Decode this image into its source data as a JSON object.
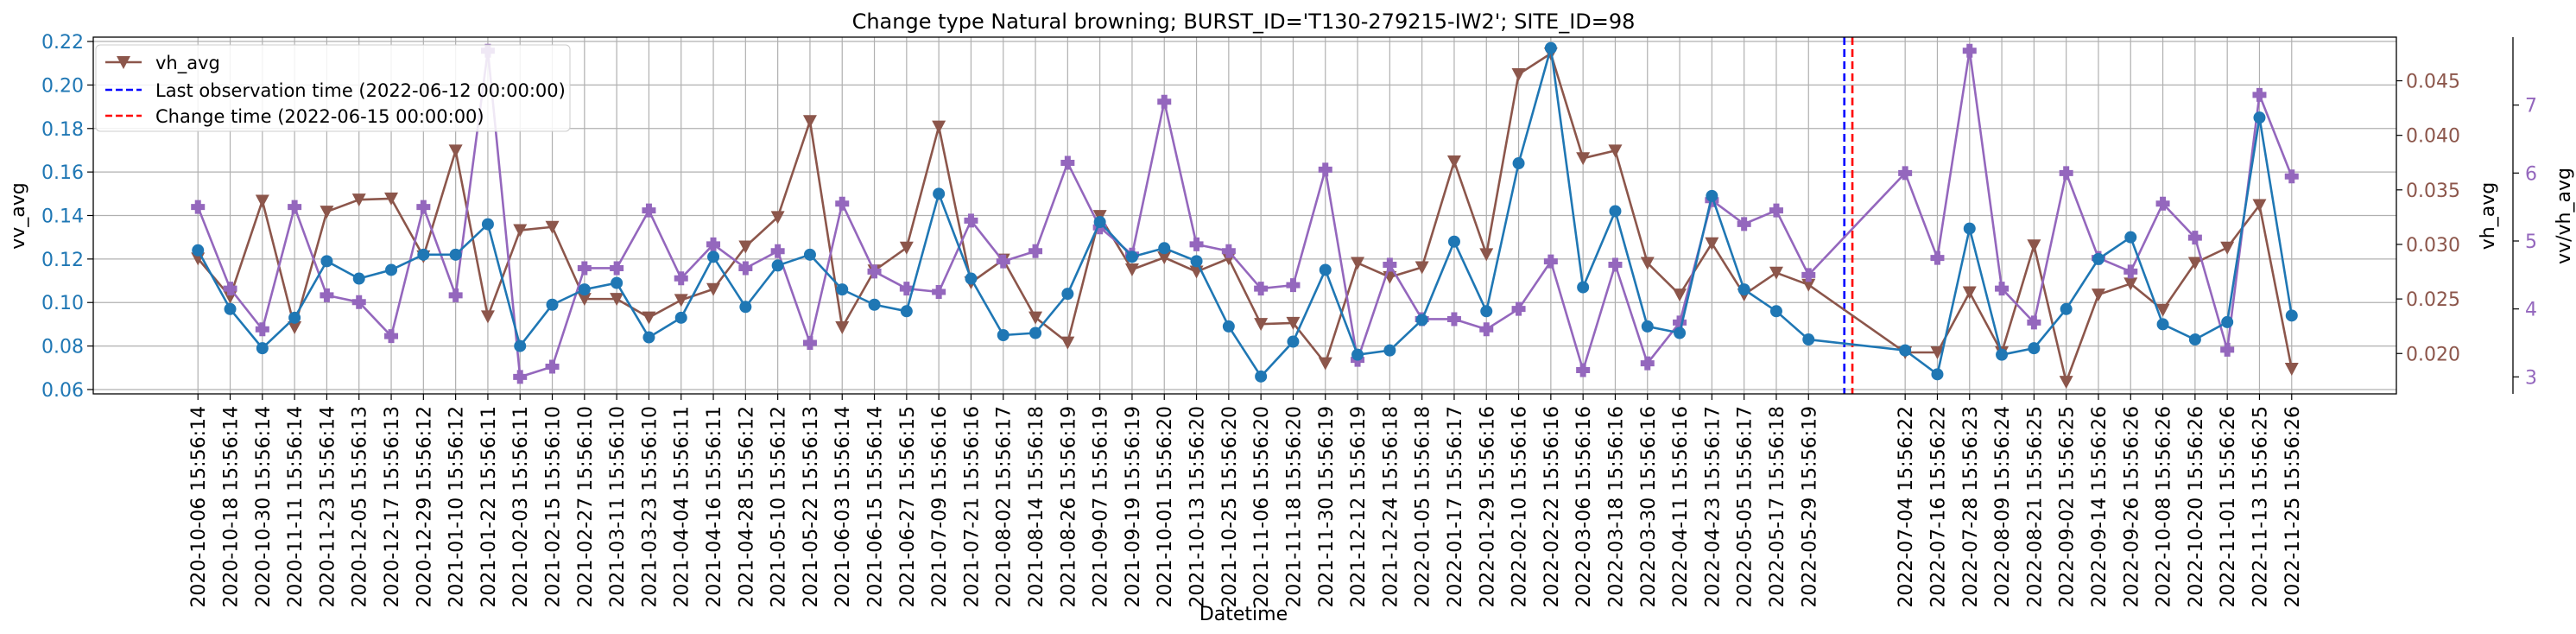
{
  "chart_data": {
    "type": "line",
    "title": "Change type Natural browning; BURST_ID='T130-279215-IW2'; SITE_ID=98",
    "xlabel": "Datetime",
    "categories": [
      "2020-10-06 15:56:14",
      "2020-10-18 15:56:14",
      "2020-10-30 15:56:14",
      "2020-11-11 15:56:14",
      "2020-11-23 15:56:14",
      "2020-12-05 15:56:13",
      "2020-12-17 15:56:13",
      "2020-12-29 15:56:12",
      "2021-01-10 15:56:12",
      "2021-01-22 15:56:11",
      "2021-02-03 15:56:11",
      "2021-02-15 15:56:10",
      "2021-02-27 15:56:10",
      "2021-03-11 15:56:10",
      "2021-03-23 15:56:10",
      "2021-04-04 15:56:11",
      "2021-04-16 15:56:11",
      "2021-04-28 15:56:12",
      "2021-05-10 15:56:12",
      "2021-05-22 15:56:13",
      "2021-06-03 15:56:14",
      "2021-06-15 15:56:14",
      "2021-06-27 15:56:15",
      "2021-07-09 15:56:16",
      "2021-07-21 15:56:16",
      "2021-08-02 15:56:17",
      "2021-08-14 15:56:18",
      "2021-08-26 15:56:19",
      "2021-09-07 15:56:19",
      "2021-09-19 15:56:19",
      "2021-10-01 15:56:20",
      "2021-10-13 15:56:20",
      "2021-10-25 15:56:20",
      "2021-11-06 15:56:20",
      "2021-11-18 15:56:20",
      "2021-11-30 15:56:19",
      "2021-12-12 15:56:19",
      "2021-12-24 15:56:18",
      "2022-01-05 15:56:18",
      "2022-01-17 15:56:17",
      "2022-01-29 15:56:16",
      "2022-02-10 15:56:16",
      "2022-02-22 15:56:16",
      "2022-03-06 15:56:16",
      "2022-03-18 15:56:16",
      "2022-03-30 15:56:16",
      "2022-04-11 15:56:16",
      "2022-04-23 15:56:17",
      "2022-05-05 15:56:17",
      "2022-05-17 15:56:18",
      "2022-05-29 15:56:19",
      "2022-07-04 15:56:22",
      "2022-07-16 15:56:22",
      "2022-07-28 15:56:23",
      "2022-08-09 15:56:24",
      "2022-08-21 15:56:25",
      "2022-09-02 15:56:25",
      "2022-09-14 15:56:26",
      "2022-09-26 15:56:26",
      "2022-10-08 15:56:26",
      "2022-10-20 15:56:26",
      "2022-11-01 15:56:26",
      "2022-11-13 15:56:25",
      "2022-11-25 15:56:26"
    ],
    "x_days": [
      0,
      12,
      24,
      36,
      48,
      60,
      72,
      84,
      96,
      108,
      120,
      132,
      144,
      156,
      168,
      180,
      192,
      204,
      216,
      228,
      240,
      252,
      264,
      276,
      288,
      300,
      312,
      324,
      336,
      348,
      360,
      372,
      384,
      396,
      408,
      420,
      432,
      444,
      456,
      468,
      480,
      492,
      504,
      516,
      528,
      540,
      552,
      564,
      576,
      588,
      600,
      636,
      648,
      660,
      672,
      684,
      696,
      708,
      720,
      732,
      744,
      756,
      768,
      780
    ],
    "series": [
      {
        "name": "vv_avg",
        "axis": "left",
        "color": "#1f77b4",
        "marker": "circle",
        "values": [
          0.124,
          0.097,
          0.079,
          0.093,
          0.119,
          0.111,
          0.115,
          0.122,
          0.122,
          0.136,
          0.08,
          0.099,
          0.106,
          0.109,
          0.084,
          0.093,
          0.121,
          0.098,
          0.117,
          0.122,
          0.106,
          0.099,
          0.096,
          0.15,
          0.111,
          0.085,
          0.086,
          0.104,
          0.137,
          0.121,
          0.125,
          0.119,
          0.089,
          0.066,
          0.082,
          0.115,
          0.076,
          0.078,
          0.092,
          0.128,
          0.096,
          0.164,
          0.217,
          0.107,
          0.142,
          0.089,
          0.086,
          0.149,
          0.106,
          0.096,
          0.083,
          0.078,
          0.067,
          0.134,
          0.076,
          0.079,
          0.097,
          0.12,
          0.13,
          0.09,
          0.083,
          0.091,
          0.185,
          0.094
        ]
      },
      {
        "name": "vh_avg",
        "axis": "right1",
        "color": "#8c564b",
        "marker": "triangle-down",
        "values": [
          0.0287,
          0.0252,
          0.034,
          0.0224,
          0.033,
          0.0341,
          0.0342,
          0.0289,
          0.0386,
          0.0234,
          0.0313,
          0.0316,
          0.025,
          0.025,
          0.0233,
          0.0249,
          0.0259,
          0.0298,
          0.0325,
          0.0413,
          0.0224,
          0.0276,
          0.0297,
          0.0408,
          0.0265,
          0.0286,
          0.0233,
          0.021,
          0.0326,
          0.0277,
          0.0288,
          0.0275,
          0.0287,
          0.0227,
          0.0228,
          0.0191,
          0.0283,
          0.027,
          0.0279,
          0.0376,
          0.0291,
          0.0456,
          0.0475,
          0.0379,
          0.0386,
          0.0283,
          0.0254,
          0.0301,
          0.0254,
          0.0274,
          0.0263,
          0.0201,
          0.0201,
          0.0256,
          0.0201,
          0.0299,
          0.0174,
          0.0254,
          0.0264,
          0.024,
          0.0283,
          0.0297,
          0.0336,
          0.0186
        ]
      },
      {
        "name": "vv/vh_avg",
        "axis": "right2",
        "color": "#9467bd",
        "marker": "plus",
        "values": [
          5.5,
          4.3,
          3.7,
          5.5,
          4.2,
          4.1,
          3.6,
          5.5,
          4.2,
          7.8,
          3.0,
          3.15,
          4.6,
          4.6,
          5.45,
          4.45,
          4.95,
          4.6,
          4.85,
          3.5,
          5.55,
          4.55,
          4.3,
          4.25,
          5.3,
          4.7,
          4.85,
          6.15,
          5.2,
          4.8,
          7.05,
          4.95,
          4.85,
          4.3,
          4.35,
          6.05,
          3.25,
          4.65,
          3.85,
          3.85,
          3.7,
          4.0,
          4.7,
          3.1,
          4.65,
          3.2,
          3.8,
          5.6,
          5.25,
          5.45,
          4.5,
          6.0,
          4.75,
          7.8,
          4.3,
          3.8,
          6.0,
          4.75,
          4.55,
          5.55,
          5.05,
          3.4,
          7.15,
          5.95
        ]
      }
    ],
    "y_left": {
      "label": "vv_avg",
      "color": "#1f77b4",
      "ylim": [
        0.058,
        0.222
      ],
      "ticks": [
        "0.06",
        "0.08",
        "0.10",
        "0.12",
        "0.14",
        "0.16",
        "0.18",
        "0.20",
        "0.22"
      ]
    },
    "y_right1": {
      "label": "vh_avg",
      "color": "#8c564b",
      "ylim": [
        0.0163,
        0.049
      ],
      "ticks": [
        "0.020",
        "0.025",
        "0.030",
        "0.035",
        "0.040",
        "0.045"
      ]
    },
    "y_right2": {
      "label": "vv/vh_avg",
      "color": "#9467bd",
      "ylim": [
        2.75,
        8.0
      ],
      "ticks": [
        "3",
        "4",
        "5",
        "6",
        "7"
      ]
    },
    "vlines": [
      {
        "label": "Last observation time (2022-06-12 00:00:00)",
        "color": "#0000ff",
        "day": 613.34
      },
      {
        "label": "Change time (2022-06-15 00:00:00)",
        "color": "#ff0000",
        "day": 616.34
      }
    ],
    "x_range_days": [
      -39,
      819
    ],
    "grid": true,
    "legend": "top-left",
    "legend_entries": [
      {
        "label": "vh_avg",
        "color": "#8c564b",
        "kind": "line-marker"
      },
      {
        "label": "Last observation time (2022-06-12 00:00:00)",
        "color": "#0000ff",
        "kind": "dashed"
      },
      {
        "label": "Change time (2022-06-15 00:00:00)",
        "color": "#ff0000",
        "kind": "dashed"
      }
    ]
  }
}
